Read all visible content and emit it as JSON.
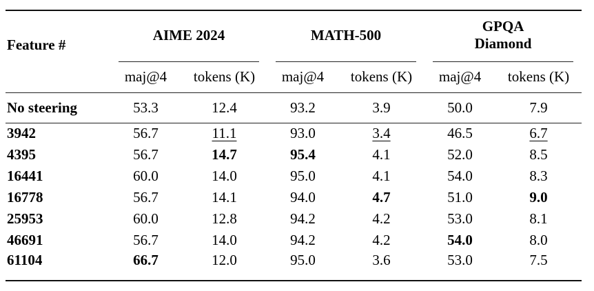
{
  "page": {
    "background": "#ffffff",
    "rule_color_heavy": "#111111",
    "rule_color_light": "#222222",
    "text_color": "#000000"
  },
  "table": {
    "feature_header": "Feature #",
    "groups": [
      {
        "label": "AIME 2024",
        "subcols": [
          "maj@4",
          "tokens (K)"
        ]
      },
      {
        "label": "MATH-500",
        "subcols": [
          "maj@4",
          "tokens (K)"
        ]
      },
      {
        "label": "GPQA\nDiamond",
        "subcols": [
          "maj@4",
          "tokens (K)"
        ]
      }
    ],
    "rows": [
      {
        "feature": "No steering",
        "cells": [
          {
            "text": "53.3",
            "style": "normal"
          },
          {
            "text": "12.4",
            "style": "normal"
          },
          {
            "text": "93.2",
            "style": "normal"
          },
          {
            "text": "3.9",
            "style": "normal"
          },
          {
            "text": "50.0",
            "style": "normal"
          },
          {
            "text": "7.9",
            "style": "normal"
          }
        ]
      },
      {
        "feature": "3942",
        "cells": [
          {
            "text": "56.7",
            "style": "normal"
          },
          {
            "text": "11.1",
            "style": "underline"
          },
          {
            "text": "93.0",
            "style": "normal"
          },
          {
            "text": "3.4",
            "style": "underline"
          },
          {
            "text": "46.5",
            "style": "normal"
          },
          {
            "text": "6.7",
            "style": "underline"
          }
        ]
      },
      {
        "feature": "4395",
        "cells": [
          {
            "text": "56.7",
            "style": "normal"
          },
          {
            "text": "14.7",
            "style": "bold"
          },
          {
            "text": "95.4",
            "style": "bold"
          },
          {
            "text": "4.1",
            "style": "normal"
          },
          {
            "text": "52.0",
            "style": "normal"
          },
          {
            "text": "8.5",
            "style": "normal"
          }
        ]
      },
      {
        "feature": "16441",
        "cells": [
          {
            "text": "60.0",
            "style": "normal"
          },
          {
            "text": "14.0",
            "style": "normal"
          },
          {
            "text": "95.0",
            "style": "normal"
          },
          {
            "text": "4.1",
            "style": "normal"
          },
          {
            "text": "54.0",
            "style": "normal"
          },
          {
            "text": "8.3",
            "style": "normal"
          }
        ]
      },
      {
        "feature": "16778",
        "cells": [
          {
            "text": "56.7",
            "style": "normal"
          },
          {
            "text": "14.1",
            "style": "normal"
          },
          {
            "text": "94.0",
            "style": "normal"
          },
          {
            "text": "4.7",
            "style": "bold"
          },
          {
            "text": "51.0",
            "style": "normal"
          },
          {
            "text": "9.0",
            "style": "bold"
          }
        ]
      },
      {
        "feature": "25953",
        "cells": [
          {
            "text": "60.0",
            "style": "normal"
          },
          {
            "text": "12.8",
            "style": "normal"
          },
          {
            "text": "94.2",
            "style": "normal"
          },
          {
            "text": "4.2",
            "style": "normal"
          },
          {
            "text": "53.0",
            "style": "normal"
          },
          {
            "text": "8.1",
            "style": "normal"
          }
        ]
      },
      {
        "feature": "46691",
        "cells": [
          {
            "text": "56.7",
            "style": "normal"
          },
          {
            "text": "14.0",
            "style": "normal"
          },
          {
            "text": "94.2",
            "style": "normal"
          },
          {
            "text": "4.2",
            "style": "normal"
          },
          {
            "text": "54.0",
            "style": "bold"
          },
          {
            "text": "8.0",
            "style": "normal"
          }
        ]
      },
      {
        "feature": "61104",
        "cells": [
          {
            "text": "66.7",
            "style": "bold"
          },
          {
            "text": "12.0",
            "style": "normal"
          },
          {
            "text": "95.0",
            "style": "normal"
          },
          {
            "text": "3.6",
            "style": "normal"
          },
          {
            "text": "53.0",
            "style": "normal"
          },
          {
            "text": "7.5",
            "style": "normal"
          }
        ]
      }
    ]
  }
}
